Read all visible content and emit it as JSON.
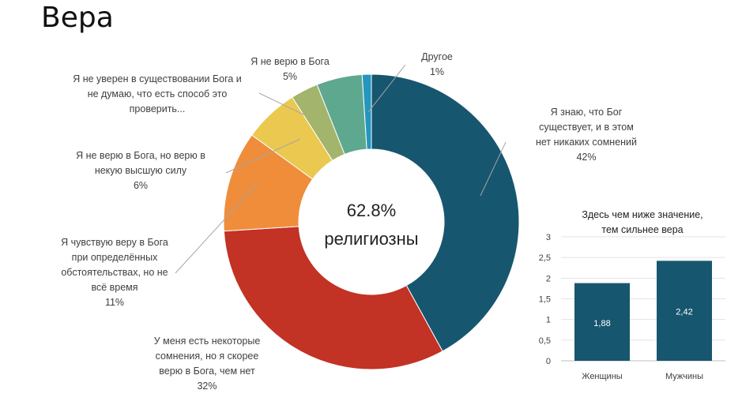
{
  "title": "Вера",
  "chart_data": [
    {
      "type": "pie",
      "variant": "donut",
      "center_text": [
        "62.8%",
        "религиозны"
      ],
      "slices": [
        {
          "label": [
            "Я знаю, что Бог",
            "существует, и в этом",
            "нет никаких сомнений"
          ],
          "value": 42,
          "pct": "42%",
          "color": "#17566f"
        },
        {
          "label": [
            "У меня есть некоторые",
            "сомнения, но я скорее",
            "верю в Бога, чем нет"
          ],
          "value": 32,
          "pct": "32%",
          "color": "#c23225"
        },
        {
          "label": [
            "Я чувствую веру в Бога",
            "при определённых",
            "обстоятельствах, но не",
            "всё время"
          ],
          "value": 11,
          "pct": "11%",
          "color": "#ef8d3a"
        },
        {
          "label": [
            "Я не верю в Бога, но верю в",
            "некую высшую силу"
          ],
          "value": 6,
          "pct": "6%",
          "color": "#ebc84f"
        },
        {
          "label": [
            "Я не уверен в существовании Бога и",
            "не думаю, что есть способ это",
            "проверить..."
          ],
          "value": 3,
          "pct": "",
          "color": "#a3b46c"
        },
        {
          "label": [
            "Я не верю в Бога"
          ],
          "value": 5,
          "pct": "5%",
          "color": "#5fa890"
        },
        {
          "label": [
            "Другое"
          ],
          "value": 1,
          "pct": "1%",
          "color": "#2596be"
        }
      ]
    },
    {
      "type": "bar",
      "title": [
        "Здесь чем ниже значение,",
        "тем сильнее вера"
      ],
      "categories": [
        "Женщины",
        "Мужчины"
      ],
      "values": [
        1.88,
        2.42
      ],
      "value_labels": [
        "1,88",
        "2,42"
      ],
      "ylim": [
        0,
        3
      ],
      "yticks": [
        "0",
        "0,5",
        "1",
        "1,5",
        "2",
        "2,5",
        "3"
      ],
      "color": "#17566f",
      "grid": true
    }
  ]
}
